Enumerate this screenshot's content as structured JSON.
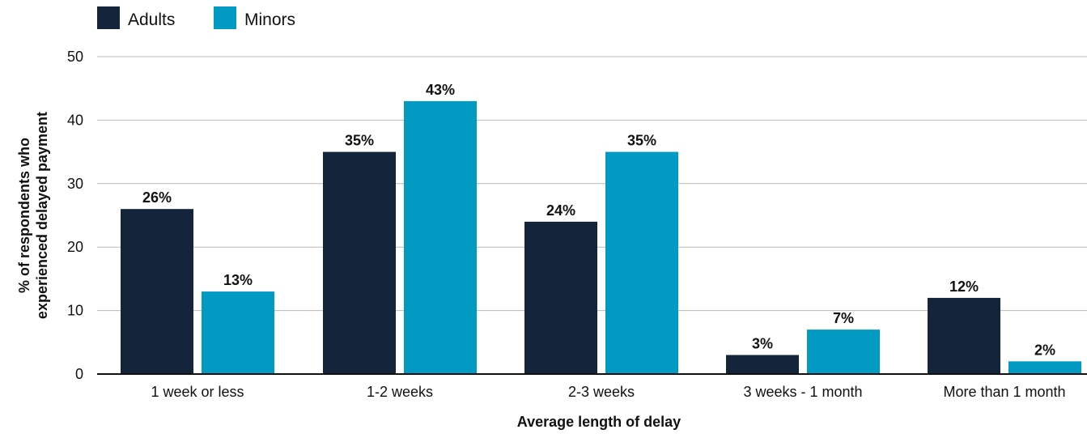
{
  "chart_data": {
    "type": "bar",
    "title": "",
    "xlabel": "Average length of delay",
    "ylabel_lines": [
      "% of respondents who",
      "experienced delayed payment"
    ],
    "ylim": [
      0,
      50
    ],
    "yticks": [
      0,
      10,
      20,
      30,
      40,
      50
    ],
    "grid": "horizontal",
    "legend_position": "top-left",
    "categories": [
      "1 week or less",
      "1-2 weeks",
      "2-3 weeks",
      "3 weeks - 1 month",
      "More than 1 month"
    ],
    "series": [
      {
        "name": "Adults",
        "color": "#14253b",
        "values": [
          26,
          35,
          24,
          3,
          12
        ],
        "labels": [
          "26%",
          "35%",
          "24%",
          "3%",
          "12%"
        ]
      },
      {
        "name": "Minors",
        "color": "#009ac3",
        "values": [
          13,
          43,
          35,
          7,
          2
        ],
        "labels": [
          "13%",
          "43%",
          "35%",
          "7%",
          "2%"
        ]
      }
    ]
  }
}
